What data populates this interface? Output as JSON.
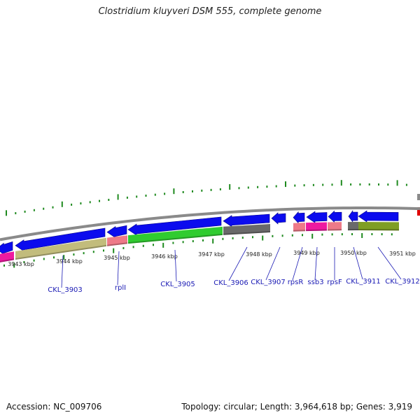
{
  "title": "Clostridium kluyveri DSM 555, complete genome",
  "accession": "Accession: NC_009706",
  "topology": "Topology: circular; Length: 3,964,618 bp; Genes: 3,919",
  "colors": {
    "backbone": "#8a8a8a",
    "tick": "#1f8a1f",
    "gene_arrow": "#0b0bee",
    "label_line": "#1a1ab4",
    "marker_red": "#e00000"
  },
  "scale_labels": [
    "3943 kbp",
    "3944 kbp",
    "3945 kbp",
    "3946 kbp",
    "3947 kbp",
    "3948 kbp",
    "3949 kbp",
    "3950 kbp",
    "3951 kbp"
  ],
  "genes": [
    {
      "label": "",
      "strand": "minus",
      "arrow_color": "#0b0bee",
      "feature_color": "#ee1aa0"
    },
    {
      "label": "CKL_3903",
      "strand": "minus",
      "arrow_color": "#0b0bee",
      "feature_color": "#c2bc7c"
    },
    {
      "label": "rplI",
      "strand": "minus",
      "arrow_color": "#0b0bee",
      "feature_color": "#ee7a88"
    },
    {
      "label": "CKL_3905",
      "strand": "minus",
      "arrow_color": "#0b0bee",
      "feature_color": "#30cc30"
    },
    {
      "label": "CKL_3906",
      "strand": "minus",
      "arrow_color": "#0b0bee",
      "feature_color": "#6a6a6a"
    },
    {
      "label": "CKL_3907",
      "strand": "minus",
      "arrow_color": "#0b0bee",
      "feature_color": ""
    },
    {
      "label": "rpsR",
      "strand": "minus",
      "arrow_color": "#0b0bee",
      "feature_color": "#ee7a88"
    },
    {
      "label": "ssb3",
      "strand": "minus",
      "arrow_color": "#0b0bee",
      "feature_color": "#ee1aa0"
    },
    {
      "label": "rpsF",
      "strand": "minus",
      "arrow_color": "#0b0bee",
      "feature_color": "#ee7a88"
    },
    {
      "label": "CKL_3911",
      "strand": "minus",
      "arrow_color": "#0b0bee",
      "feature_color": "#6a6a6a"
    },
    {
      "label": "CKL_3912",
      "strand": "minus",
      "arrow_color": "#0b0bee",
      "feature_color": "#7f9e24"
    }
  ]
}
